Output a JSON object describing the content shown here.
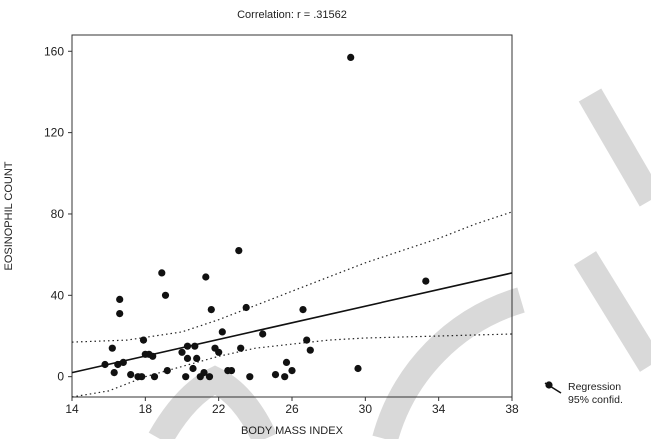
{
  "chart_data": {
    "type": "scatter",
    "title": "Correlation: r = .31562",
    "xlabel": "BODY MASS INDEX",
    "ylabel": "EOSINOPHIL COUNT",
    "xlim": [
      14,
      38
    ],
    "ylim": [
      -10,
      168
    ],
    "xticks": [
      14,
      18,
      22,
      26,
      30,
      34,
      38
    ],
    "yticks": [
      0,
      40,
      80,
      120,
      160
    ],
    "grid": false,
    "legend_position": "bottom-right",
    "legend": [
      "Regression",
      "95% confid."
    ],
    "regression": {
      "x": [
        14,
        38
      ],
      "y": [
        2,
        51
      ]
    },
    "confidence_upper": [
      [
        14,
        17
      ],
      [
        17,
        18
      ],
      [
        20,
        22
      ],
      [
        22,
        28
      ],
      [
        24,
        35
      ],
      [
        26,
        42
      ],
      [
        28,
        49
      ],
      [
        30,
        56
      ],
      [
        32,
        62
      ],
      [
        34,
        68
      ],
      [
        36,
        75
      ],
      [
        38,
        81
      ]
    ],
    "confidence_lower": [
      [
        14,
        -13
      ],
      [
        16,
        -7
      ],
      [
        18,
        0
      ],
      [
        20,
        5
      ],
      [
        22,
        10
      ],
      [
        24,
        14
      ],
      [
        26,
        16
      ],
      [
        28,
        18
      ],
      [
        30,
        19
      ],
      [
        32,
        19.5
      ],
      [
        34,
        20
      ],
      [
        36,
        20.5
      ],
      [
        38,
        21
      ]
    ],
    "points": [
      [
        15.8,
        6
      ],
      [
        16.2,
        14
      ],
      [
        16.3,
        2
      ],
      [
        16.5,
        6
      ],
      [
        16.6,
        38
      ],
      [
        16.6,
        31
      ],
      [
        16.8,
        7
      ],
      [
        17.2,
        1
      ],
      [
        17.6,
        0
      ],
      [
        17.8,
        0
      ],
      [
        17.9,
        18
      ],
      [
        18.0,
        11
      ],
      [
        18.2,
        11
      ],
      [
        18.4,
        10
      ],
      [
        18.5,
        0
      ],
      [
        18.9,
        51
      ],
      [
        19.1,
        40
      ],
      [
        19.2,
        3
      ],
      [
        20.0,
        12
      ],
      [
        20.2,
        0
      ],
      [
        20.3,
        15
      ],
      [
        20.3,
        9
      ],
      [
        20.6,
        4
      ],
      [
        20.7,
        15
      ],
      [
        20.8,
        9
      ],
      [
        21.0,
        0
      ],
      [
        21.2,
        2
      ],
      [
        21.3,
        49
      ],
      [
        21.5,
        0
      ],
      [
        21.6,
        33
      ],
      [
        21.8,
        14
      ],
      [
        22.0,
        12
      ],
      [
        22.2,
        22
      ],
      [
        22.5,
        3
      ],
      [
        22.7,
        3
      ],
      [
        23.1,
        62
      ],
      [
        23.2,
        14
      ],
      [
        23.5,
        34
      ],
      [
        23.7,
        0
      ],
      [
        24.4,
        21
      ],
      [
        25.1,
        1
      ],
      [
        25.6,
        0
      ],
      [
        25.7,
        7
      ],
      [
        26.0,
        3
      ],
      [
        26.6,
        33
      ],
      [
        26.8,
        18
      ],
      [
        27.0,
        13
      ],
      [
        29.2,
        157
      ],
      [
        29.6,
        4
      ],
      [
        33.3,
        47
      ]
    ]
  }
}
